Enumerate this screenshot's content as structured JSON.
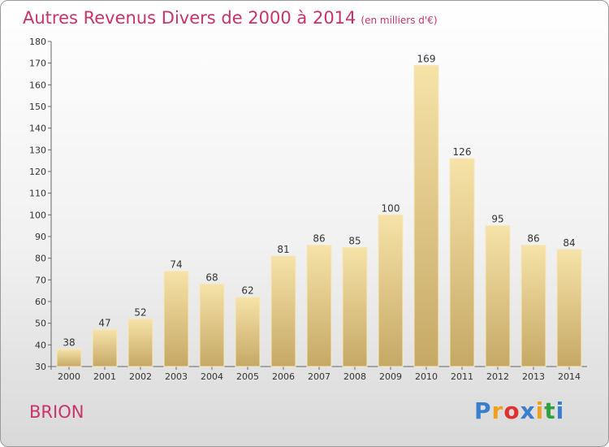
{
  "title": "Autres Revenus Divers de 2000 à 2014",
  "subtitle": "(en milliers d'€)",
  "city": "BRION",
  "logo": {
    "text": "Proxiti",
    "colors": [
      "#3a7fcf",
      "#f0a020",
      "#e03030",
      "#3a7fcf",
      "#f0a020",
      "#30a040",
      "#3a7fcf"
    ]
  },
  "colors": {
    "accent": "#c8336a",
    "bar_light": "#f6e3a8",
    "bar_dark": "#c6a866",
    "bar_edge": "#f5e8c0"
  },
  "chart_data": {
    "type": "bar",
    "title": "Autres Revenus Divers de 2000 à 2014",
    "categories": [
      "2000",
      "2001",
      "2002",
      "2003",
      "2004",
      "2005",
      "2006",
      "2007",
      "2008",
      "2009",
      "2010",
      "2011",
      "2012",
      "2013",
      "2014"
    ],
    "values": [
      38,
      47,
      52,
      74,
      68,
      62,
      81,
      86,
      85,
      100,
      169,
      126,
      95,
      86,
      84
    ],
    "ylim": [
      30,
      180
    ],
    "yticks": [
      30,
      40,
      50,
      60,
      70,
      80,
      90,
      100,
      110,
      120,
      130,
      140,
      150,
      160,
      170,
      180
    ],
    "grid": false,
    "xlabel": "",
    "ylabel": ""
  }
}
